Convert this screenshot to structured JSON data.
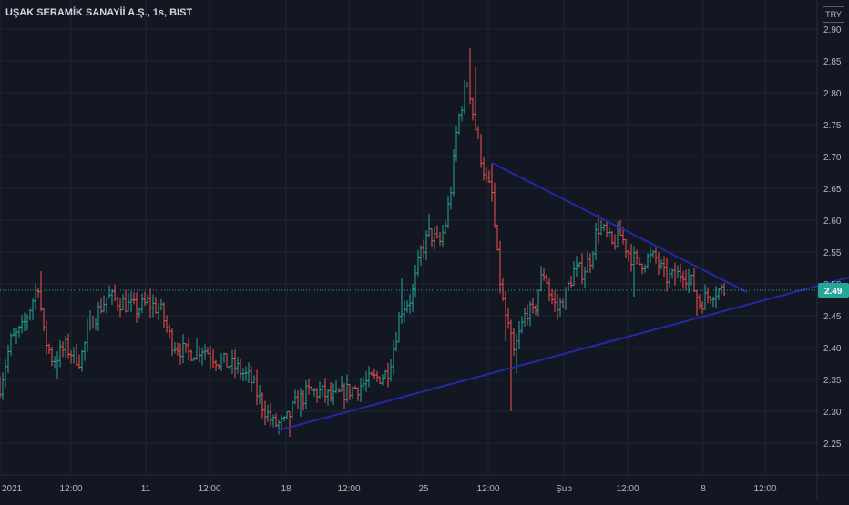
{
  "chart_data": {
    "type": "ohlc",
    "title": "UŞAK SERAMİK SANAYİİ A.Ş., 1s, BIST",
    "currency": "TRY",
    "ylim": [
      2.2,
      2.93
    ],
    "y_ticks": [
      "2.25",
      "2.30",
      "2.35",
      "2.40",
      "2.45",
      "2.50",
      "2.55",
      "2.60",
      "2.65",
      "2.70",
      "2.75",
      "2.80",
      "2.85",
      "2.90"
    ],
    "x_ticks": [
      {
        "label": "2021",
        "pos": 0
      },
      {
        "label": "12:00",
        "pos": 78
      },
      {
        "label": "11",
        "pos": 160
      },
      {
        "label": "12:00",
        "pos": 230
      },
      {
        "label": "18",
        "pos": 314
      },
      {
        "label": "12:00",
        "pos": 383
      },
      {
        "label": "25",
        "pos": 465
      },
      {
        "label": "12:00",
        "pos": 536
      },
      {
        "label": "Şub",
        "pos": 619
      },
      {
        "label": "12:00",
        "pos": 689
      },
      {
        "label": "8",
        "pos": 772
      },
      {
        "label": "12:00",
        "pos": 840
      }
    ],
    "last_price": 2.49,
    "last_price_label": "2.49",
    "anchors": [
      [
        0,
        2.34
      ],
      [
        12,
        2.41
      ],
      [
        25,
        2.43
      ],
      [
        42,
        2.5
      ],
      [
        48,
        2.42
      ],
      [
        58,
        2.38
      ],
      [
        72,
        2.4
      ],
      [
        88,
        2.38
      ],
      [
        100,
        2.44
      ],
      [
        118,
        2.48
      ],
      [
        135,
        2.47
      ],
      [
        150,
        2.46
      ],
      [
        162,
        2.47
      ],
      [
        176,
        2.46
      ],
      [
        188,
        2.41
      ],
      [
        205,
        2.39
      ],
      [
        222,
        2.4
      ],
      [
        240,
        2.38
      ],
      [
        258,
        2.37
      ],
      [
        275,
        2.35
      ],
      [
        288,
        2.31
      ],
      [
        300,
        2.28
      ],
      [
        312,
        2.28
      ],
      [
        324,
        2.31
      ],
      [
        338,
        2.33
      ],
      [
        352,
        2.33
      ],
      [
        365,
        2.32
      ],
      [
        378,
        2.33
      ],
      [
        395,
        2.34
      ],
      [
        410,
        2.35
      ],
      [
        425,
        2.36
      ],
      [
        432,
        2.4
      ],
      [
        440,
        2.46
      ],
      [
        452,
        2.48
      ],
      [
        462,
        2.55
      ],
      [
        472,
        2.58
      ],
      [
        482,
        2.56
      ],
      [
        490,
        2.6
      ],
      [
        496,
        2.66
      ],
      [
        502,
        2.75
      ],
      [
        508,
        2.79
      ],
      [
        514,
        2.82
      ],
      [
        520,
        2.76
      ],
      [
        528,
        2.7
      ],
      [
        534,
        2.66
      ],
      [
        540,
        2.64
      ],
      [
        546,
        2.54
      ],
      [
        552,
        2.47
      ],
      [
        558,
        2.43
      ],
      [
        564,
        2.39
      ],
      [
        570,
        2.42
      ],
      [
        578,
        2.46
      ],
      [
        586,
        2.45
      ],
      [
        592,
        2.5
      ],
      [
        598,
        2.52
      ],
      [
        604,
        2.48
      ],
      [
        612,
        2.46
      ],
      [
        620,
        2.48
      ],
      [
        630,
        2.52
      ],
      [
        640,
        2.52
      ],
      [
        648,
        2.54
      ],
      [
        656,
        2.59
      ],
      [
        664,
        2.58
      ],
      [
        672,
        2.56
      ],
      [
        680,
        2.58
      ],
      [
        690,
        2.55
      ],
      [
        700,
        2.53
      ],
      [
        710,
        2.54
      ],
      [
        720,
        2.54
      ],
      [
        730,
        2.51
      ],
      [
        740,
        2.51
      ],
      [
        750,
        2.52
      ],
      [
        760,
        2.5
      ],
      [
        768,
        2.47
      ],
      [
        776,
        2.48
      ],
      [
        784,
        2.49
      ],
      [
        792,
        2.49
      ],
      [
        797,
        2.49
      ]
    ],
    "spikes": [
      {
        "x": 44,
        "high": 2.52
      },
      {
        "x": 62,
        "low": 2.35
      },
      {
        "x": 166,
        "high": 2.49
      },
      {
        "x": 283,
        "low": 2.31
      },
      {
        "x": 317,
        "low": 2.26
      },
      {
        "x": 440,
        "high": 2.51
      },
      {
        "x": 472,
        "high": 2.61
      },
      {
        "x": 516,
        "high": 2.87
      },
      {
        "x": 522,
        "high": 2.84
      },
      {
        "x": 541,
        "high": 2.69
      },
      {
        "x": 555,
        "low": 2.41
      },
      {
        "x": 561,
        "low": 2.3
      },
      {
        "x": 568,
        "low": 2.36
      },
      {
        "x": 656,
        "high": 2.61
      },
      {
        "x": 682,
        "high": 2.6
      },
      {
        "x": 695,
        "low": 2.48
      },
      {
        "x": 764,
        "low": 2.45
      }
    ],
    "trendlines": [
      {
        "from": [
          305,
          2.27
        ],
        "to": [
          932,
          2.51
        ]
      },
      {
        "from": [
          540,
          2.69
        ],
        "to": [
          820,
          2.487
        ]
      }
    ],
    "colors": {
      "background": "#131722",
      "up": "#26a69a",
      "down": "#ef5350",
      "trendline": "#2428a6",
      "grid": "#1f2433",
      "axis_text": "#b2b5be",
      "price_line": "#26a69a"
    },
    "grid": true
  }
}
